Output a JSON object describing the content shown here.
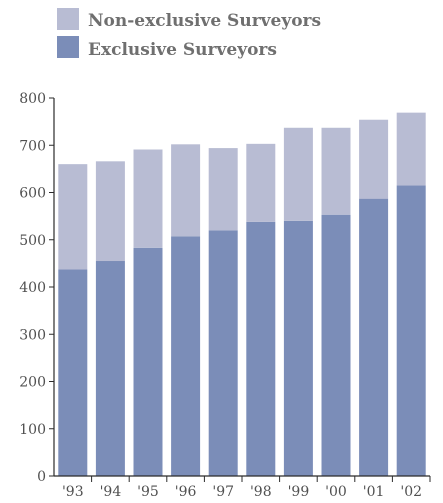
{
  "chart_data": {
    "type": "bar",
    "stacked": true,
    "categories": [
      "'93",
      "'94",
      "'95",
      "'96",
      "'97",
      "'98",
      "'99",
      "'00",
      "'01",
      "'02"
    ],
    "series": [
      {
        "name": "Exclusive Surveyors",
        "values": [
          437,
          455,
          483,
          507,
          520,
          538,
          540,
          553,
          587,
          615
        ],
        "color": "#7b8db8"
      },
      {
        "name": "Non-exclusive Surveyors",
        "values": [
          223,
          211,
          208,
          195,
          174,
          165,
          197,
          184,
          167,
          154
        ],
        "color": "#b8bcd3"
      }
    ],
    "totals": [
      660,
      666,
      691,
      702,
      694,
      703,
      737,
      737,
      754,
      769
    ],
    "title": "",
    "xlabel": "",
    "ylabel": "",
    "ylim": [
      0,
      800
    ],
    "yticks": [
      0,
      100,
      200,
      300,
      400,
      500,
      600,
      700,
      800
    ],
    "grid": false,
    "legend_position": "top-left"
  }
}
